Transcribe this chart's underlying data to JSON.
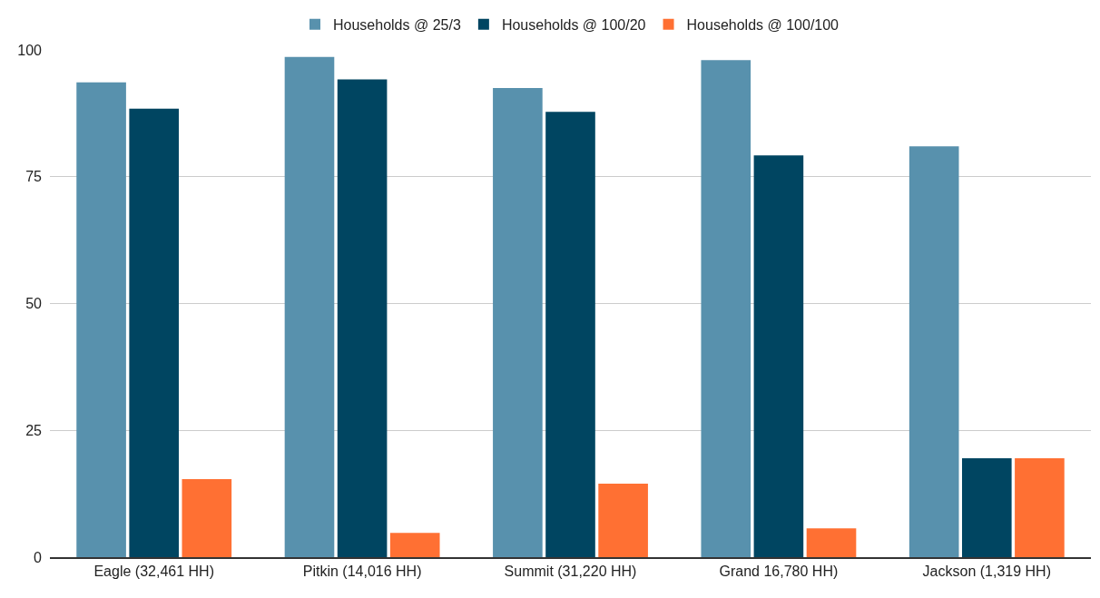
{
  "chart_data": {
    "type": "bar",
    "categories": [
      "Eagle (32,461 HH)",
      "Pitkin (14,016 HH)",
      "Summit (31,220 HH)",
      "Grand 16,780 HH)",
      "Jackson (1,319 HH)"
    ],
    "series": [
      {
        "name": "Households @ 25/3",
        "color": "#5891ad",
        "values": [
          93.6,
          98.6,
          92.5,
          98.0,
          81.0
        ]
      },
      {
        "name": "Households @ 100/20",
        "color": "#004561",
        "values": [
          88.4,
          94.2,
          87.8,
          79.2,
          19.5
        ]
      },
      {
        "name": "Households @ 100/100",
        "color": "#ff7033",
        "values": [
          15.4,
          4.8,
          14.5,
          5.7,
          19.5
        ]
      }
    ],
    "ylim": [
      0,
      100
    ],
    "yticks": [
      0,
      25,
      50,
      75,
      100
    ],
    "grid": "y",
    "legend": "top"
  }
}
